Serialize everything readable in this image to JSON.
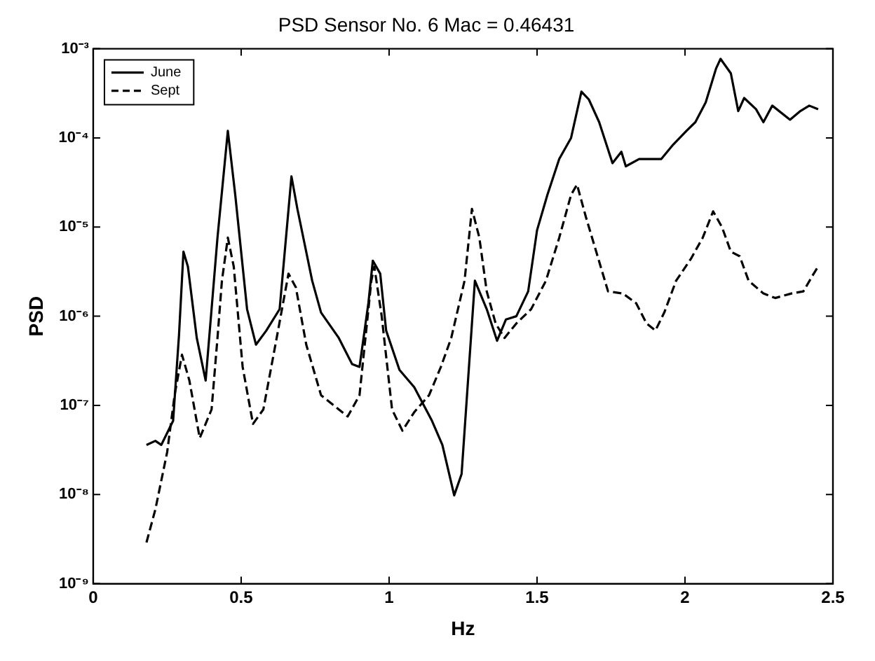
{
  "chart_data": {
    "type": "line",
    "title": "PSD Sensor No. 6 Mac = 0.46431",
    "xlabel": "Hz",
    "ylabel": "PSD",
    "xlim": [
      0,
      2.5
    ],
    "xticks": [
      0,
      0.5,
      1,
      1.5,
      2,
      2.5
    ],
    "ylim": [
      1e-09,
      0.001
    ],
    "yticks": [
      {
        "value": 1e-09,
        "label": "10⁻⁹"
      },
      {
        "value": 1e-08,
        "label": "10⁻⁸"
      },
      {
        "value": 1e-07,
        "label": "10⁻⁷"
      },
      {
        "value": 1e-06,
        "label": "10⁻⁶"
      },
      {
        "value": 1e-05,
        "label": "10⁻⁵"
      },
      {
        "value": 0.0001,
        "label": "10⁻⁴"
      },
      {
        "value": 0.001,
        "label": "10⁻³"
      }
    ],
    "log": "y",
    "grid": false,
    "legend": "top left",
    "marker": "none",
    "series": [
      {
        "name": "June",
        "color": "#000000",
        "line_style": "solid",
        "x": [
          0.18,
          0.21,
          0.23,
          0.27,
          0.29,
          0.305,
          0.32,
          0.35,
          0.38,
          0.42,
          0.455,
          0.48,
          0.52,
          0.55,
          0.585,
          0.63,
          0.67,
          0.69,
          0.74,
          0.77,
          0.83,
          0.875,
          0.9,
          0.93,
          0.945,
          0.97,
          0.99,
          1.035,
          1.085,
          1.145,
          1.18,
          1.22,
          1.245,
          1.28,
          1.29,
          1.33,
          1.365,
          1.395,
          1.43,
          1.47,
          1.5,
          1.535,
          1.575,
          1.615,
          1.65,
          1.675,
          1.71,
          1.755,
          1.785,
          1.8,
          1.845,
          1.92,
          1.96,
          2.005,
          2.035,
          2.07,
          2.105,
          2.12,
          2.155,
          2.18,
          2.2,
          2.24,
          2.265,
          2.295,
          2.355,
          2.39,
          2.42,
          2.45
        ],
        "values": [
          3.6e-08,
          4e-08,
          3.6e-08,
          6.7e-08,
          6.2e-07,
          5.3e-06,
          3.6e-06,
          5.7e-07,
          1.9e-07,
          7.6e-06,
          0.00012,
          2.3e-05,
          1.2e-06,
          4.8e-07,
          6.9e-07,
          1.2e-06,
          3.7e-05,
          1.6e-05,
          2.5e-06,
          1.1e-06,
          5.7e-07,
          2.9e-07,
          2.7e-07,
          1.4e-06,
          4.2e-06,
          3e-06,
          6.9e-07,
          2.5e-07,
          1.6e-07,
          6.7e-08,
          3.6e-08,
          9.8e-09,
          1.7e-08,
          8.3e-07,
          2.5e-06,
          1.2e-06,
          5.3e-07,
          9.2e-07,
          1e-06,
          1.9e-06,
          9.2e-06,
          2.3e-05,
          5.8e-05,
          0.0001,
          0.00033,
          0.00027,
          0.00015,
          5.2e-05,
          7e-05,
          4.8e-05,
          5.8e-05,
          5.8e-05,
          8.4e-05,
          0.00012,
          0.00015,
          0.00025,
          0.0006,
          0.00077,
          0.00053,
          0.0002,
          0.00028,
          0.00021,
          0.00015,
          0.00023,
          0.00016,
          0.0002,
          0.00023,
          0.00021
        ]
      },
      {
        "name": "Sept",
        "color": "#000000",
        "line_style": "dashed",
        "x": [
          0.18,
          0.21,
          0.25,
          0.275,
          0.3,
          0.325,
          0.36,
          0.4,
          0.42,
          0.435,
          0.455,
          0.475,
          0.505,
          0.54,
          0.575,
          0.62,
          0.66,
          0.685,
          0.72,
          0.77,
          0.83,
          0.86,
          0.9,
          0.94,
          0.95,
          0.975,
          1.01,
          1.045,
          1.085,
          1.135,
          1.175,
          1.21,
          1.255,
          1.28,
          1.305,
          1.33,
          1.36,
          1.39,
          1.43,
          1.48,
          1.53,
          1.575,
          1.615,
          1.635,
          1.665,
          1.7,
          1.74,
          1.79,
          1.835,
          1.87,
          1.9,
          1.93,
          1.97,
          2.02,
          2.06,
          2.095,
          2.125,
          2.155,
          2.185,
          2.215,
          2.265,
          2.305,
          2.36,
          2.4,
          2.435,
          2.45
        ],
        "values": [
          2.9e-09,
          6.8e-09,
          3e-08,
          1.3e-07,
          3.7e-07,
          1.9e-07,
          4.3e-08,
          9e-08,
          5.7e-07,
          2.5e-06,
          7.6e-06,
          3.6e-06,
          2.7e-07,
          6.2e-08,
          9e-08,
          5.7e-07,
          3e-06,
          2.1e-06,
          4.8e-07,
          1.3e-07,
          9e-08,
          7.5e-08,
          1.3e-07,
          2.5e-06,
          3.6e-06,
          1e-06,
          9e-08,
          5.2e-08,
          8.4e-08,
          1.3e-07,
          2.7e-07,
          5.7e-07,
          2.5e-06,
          1.6e-05,
          7.6e-06,
          1.9e-06,
          8.3e-07,
          5.7e-07,
          8.3e-07,
          1.2e-06,
          2.5e-06,
          7.6e-06,
          2.3e-05,
          3e-05,
          1.3e-05,
          5.3e-06,
          1.9e-06,
          1.8e-06,
          1.4e-06,
          8.3e-07,
          6.9e-07,
          1.1e-06,
          2.5e-06,
          4.4e-06,
          7.6e-06,
          1.5e-05,
          1e-05,
          5.3e-06,
          4.7e-06,
          2.5e-06,
          1.8e-06,
          1.6e-06,
          1.8e-06,
          1.9e-06,
          3e-06,
          3.6e-06
        ]
      }
    ]
  }
}
